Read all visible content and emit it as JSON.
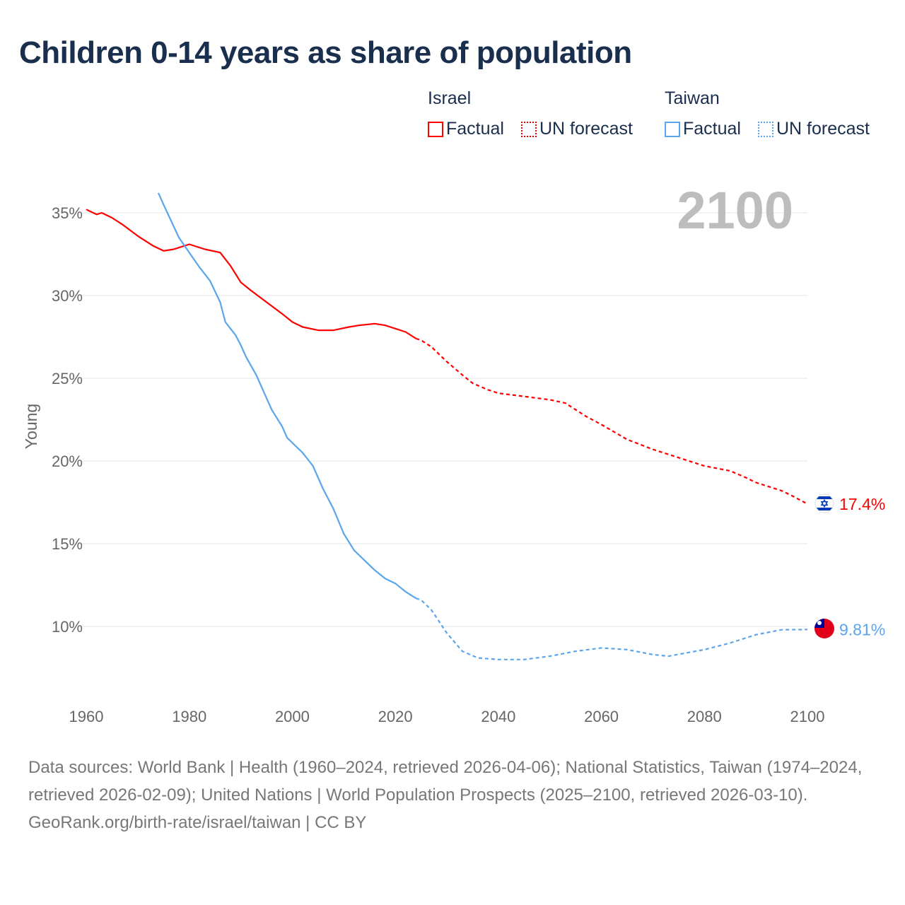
{
  "title": "Children 0-14 years as share of population",
  "legend": [
    {
      "country": "Israel",
      "factual_label": "Factual",
      "forecast_label": "UN forecast",
      "color": "#ff0000"
    },
    {
      "country": "Taiwan",
      "factual_label": "Factual",
      "forecast_label": "UN forecast",
      "color": "#5aa5ec"
    }
  ],
  "year_overlay": "2100",
  "footer": {
    "sources": "Data sources: World Bank | Health (1960–2024, retrieved 2026-04-06); National Statistics, Taiwan (1974–2024, retrieved 2026-02-09); United Nations | World Population Prospects (2025–2100, retrieved 2026-03-10).",
    "credit": "GeoRank.org/birth-rate/israel/taiwan | CC BY"
  },
  "chart_data": {
    "type": "line",
    "title": "Children 0-14 years as share of population",
    "xlabel": "",
    "ylabel": "Young",
    "xlim": [
      1960,
      2100
    ],
    "ylim": [
      7,
      37
    ],
    "x_ticks": [
      "1960",
      "1980",
      "2000",
      "2020",
      "2040",
      "2060",
      "2080",
      "2100"
    ],
    "y_ticks": [
      {
        "v": 10,
        "label": "10%"
      },
      {
        "v": 15,
        "label": "15%"
      },
      {
        "v": 20,
        "label": "20%"
      },
      {
        "v": 25,
        "label": "25%"
      },
      {
        "v": 30,
        "label": "30%"
      },
      {
        "v": 35,
        "label": "35%"
      }
    ],
    "grid": true,
    "series": [
      {
        "name": "Israel",
        "color": "#ff0000",
        "end_label": "17.4%",
        "factual": [
          [
            1960,
            35.2
          ],
          [
            1962,
            34.9
          ],
          [
            1963,
            35.0
          ],
          [
            1965,
            34.7
          ],
          [
            1967,
            34.3
          ],
          [
            1970,
            33.6
          ],
          [
            1973,
            33.0
          ],
          [
            1975,
            32.7
          ],
          [
            1977,
            32.8
          ],
          [
            1980,
            33.1
          ],
          [
            1983,
            32.8
          ],
          [
            1986,
            32.6
          ],
          [
            1988,
            31.8
          ],
          [
            1990,
            30.8
          ],
          [
            1992,
            30.3
          ],
          [
            1995,
            29.6
          ],
          [
            1998,
            28.9
          ],
          [
            2000,
            28.4
          ],
          [
            2002,
            28.1
          ],
          [
            2005,
            27.9
          ],
          [
            2008,
            27.9
          ],
          [
            2011,
            28.1
          ],
          [
            2013,
            28.2
          ],
          [
            2016,
            28.3
          ],
          [
            2018,
            28.2
          ],
          [
            2022,
            27.8
          ],
          [
            2024,
            27.4
          ]
        ],
        "forecast": [
          [
            2024,
            27.4
          ],
          [
            2025,
            27.3
          ],
          [
            2027,
            26.9
          ],
          [
            2030,
            26.0
          ],
          [
            2033,
            25.2
          ],
          [
            2035,
            24.7
          ],
          [
            2038,
            24.3
          ],
          [
            2040,
            24.1
          ],
          [
            2045,
            23.9
          ],
          [
            2050,
            23.7
          ],
          [
            2053,
            23.5
          ],
          [
            2057,
            22.7
          ],
          [
            2060,
            22.2
          ],
          [
            2065,
            21.3
          ],
          [
            2070,
            20.7
          ],
          [
            2075,
            20.2
          ],
          [
            2078,
            19.9
          ],
          [
            2080,
            19.7
          ],
          [
            2085,
            19.4
          ],
          [
            2088,
            19.0
          ],
          [
            2090,
            18.7
          ],
          [
            2095,
            18.2
          ],
          [
            2097,
            17.9
          ],
          [
            2100,
            17.4
          ]
        ]
      },
      {
        "name": "Taiwan",
        "color": "#5aa5ec",
        "end_label": "9.81%",
        "factual": [
          [
            1974,
            36.2
          ],
          [
            1975,
            35.5
          ],
          [
            1978,
            33.5
          ],
          [
            1980,
            32.6
          ],
          [
            1982,
            31.7
          ],
          [
            1984,
            30.9
          ],
          [
            1986,
            29.6
          ],
          [
            1987,
            28.4
          ],
          [
            1989,
            27.6
          ],
          [
            1990,
            27.0
          ],
          [
            1991,
            26.3
          ],
          [
            1993,
            25.2
          ],
          [
            1995,
            23.8
          ],
          [
            1996,
            23.1
          ],
          [
            1998,
            22.1
          ],
          [
            1999,
            21.4
          ],
          [
            2002,
            20.5
          ],
          [
            2004,
            19.7
          ],
          [
            2006,
            18.3
          ],
          [
            2008,
            17.1
          ],
          [
            2010,
            15.6
          ],
          [
            2012,
            14.6
          ],
          [
            2014,
            14.0
          ],
          [
            2016,
            13.4
          ],
          [
            2018,
            12.9
          ],
          [
            2020,
            12.6
          ],
          [
            2022,
            12.1
          ],
          [
            2024,
            11.7
          ]
        ],
        "forecast": [
          [
            2024,
            11.7
          ],
          [
            2025,
            11.6
          ],
          [
            2027,
            11.0
          ],
          [
            2030,
            9.6
          ],
          [
            2033,
            8.5
          ],
          [
            2036,
            8.1
          ],
          [
            2040,
            8.0
          ],
          [
            2045,
            8.0
          ],
          [
            2050,
            8.2
          ],
          [
            2055,
            8.5
          ],
          [
            2060,
            8.7
          ],
          [
            2065,
            8.6
          ],
          [
            2070,
            8.3
          ],
          [
            2073,
            8.2
          ],
          [
            2080,
            8.6
          ],
          [
            2085,
            9.0
          ],
          [
            2090,
            9.5
          ],
          [
            2095,
            9.8
          ],
          [
            2100,
            9.81
          ]
        ]
      }
    ]
  }
}
